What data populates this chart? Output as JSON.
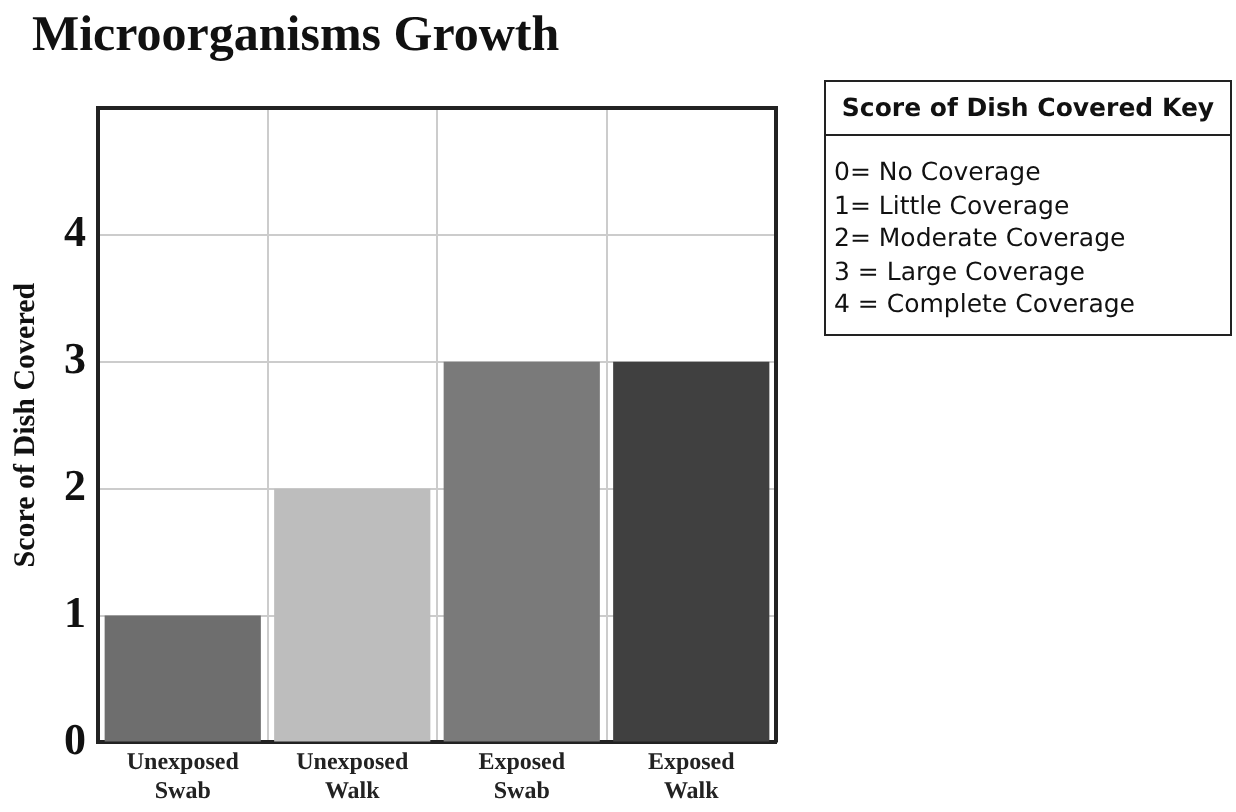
{
  "chart_data": {
    "type": "bar",
    "title": "Microorganisms Growth",
    "ylabel": "Score of Dish Covered",
    "categories": [
      "Unexposed\nSwab",
      "Unexposed\nWalk",
      "Exposed\nSwab",
      "Exposed\nWalk"
    ],
    "values": [
      1,
      2,
      3,
      3
    ],
    "colors": [
      "#6e6e6e",
      "#bdbdbd",
      "#7a7a7a",
      "#404040"
    ],
    "ylim": [
      0,
      5
    ],
    "yticks": [
      0,
      1,
      2,
      3,
      4
    ],
    "grid": true,
    "annotations": [
      "Score of Dish Covered Key",
      "0= No Coverage",
      "1= Little Coverage",
      "2= Moderate Coverage",
      "3 = Large Coverage",
      "4 = Complete Coverage"
    ]
  }
}
